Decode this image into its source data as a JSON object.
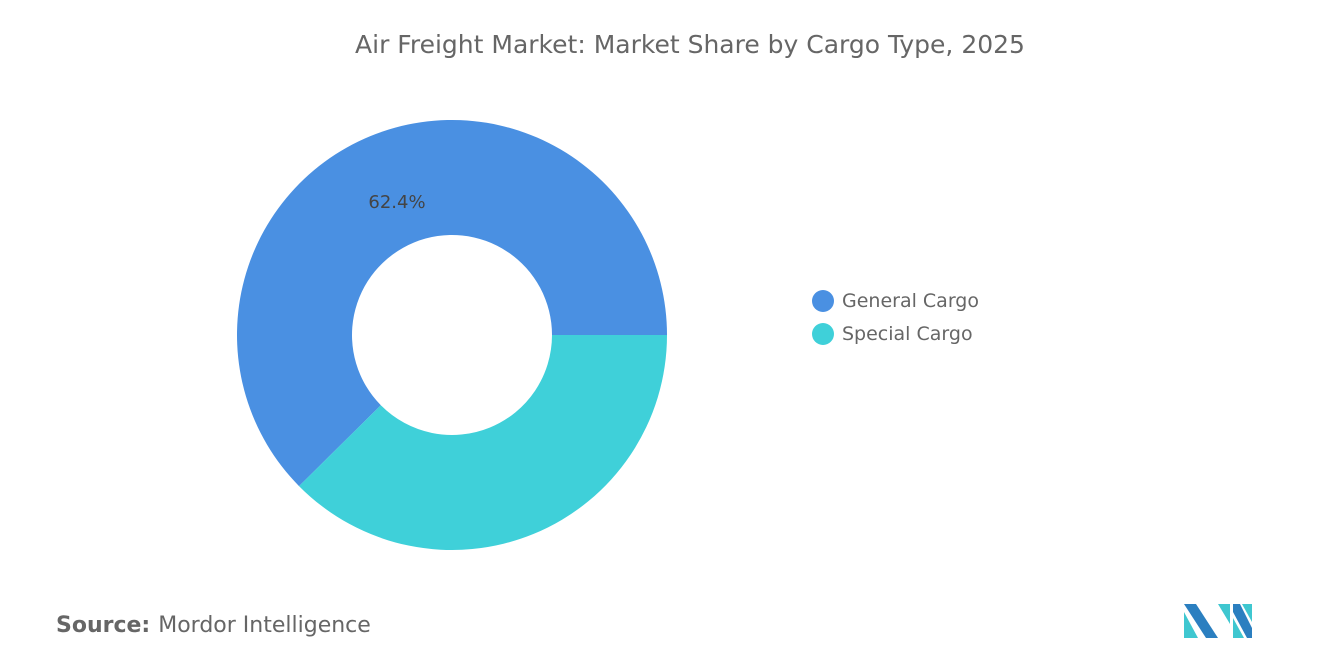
{
  "chart_data": {
    "type": "pie",
    "donut": true,
    "title": "Air Freight Market: Market Share by Cargo Type, 2025",
    "categories": [
      "General Cargo",
      "Special Cargo"
    ],
    "values": [
      62.4,
      37.6
    ],
    "data_labels": [
      "62.4%",
      ""
    ],
    "colors": [
      "#4a90e2",
      "#3fd0d9"
    ],
    "legend_position": "right"
  },
  "source": {
    "label": "Source:",
    "value": "Mordor Intelligence"
  },
  "logo": {
    "text": "Mordor Intelligence",
    "colors": [
      "#2b7fc0",
      "#3fc7d0"
    ]
  }
}
